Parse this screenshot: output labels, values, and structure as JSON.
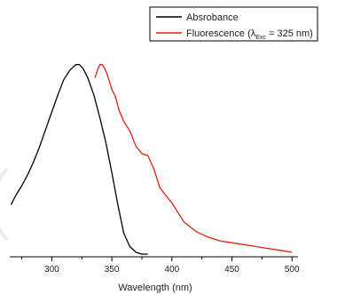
{
  "chart_data": {
    "type": "line",
    "title": "",
    "xlabel": "Wavelength (nm)",
    "ylabel": "",
    "xlim": [
      265,
      505
    ],
    "ylim": [
      0,
      1.05
    ],
    "x_ticks": [
      300,
      350,
      400,
      450,
      500
    ],
    "x_tick_labels": [
      "300",
      "350",
      "400",
      "450",
      "500"
    ],
    "grid": false,
    "legend_position": "top-right",
    "series": [
      {
        "name": "Absrobance",
        "color": "#000000",
        "x": [
          266,
          270,
          275,
          280,
          285,
          290,
          295,
          300,
          305,
          310,
          315,
          320,
          323,
          326,
          330,
          335,
          340,
          345,
          350,
          355,
          360,
          365,
          370,
          375,
          380
        ],
        "y": [
          0.26,
          0.31,
          0.36,
          0.42,
          0.49,
          0.57,
          0.66,
          0.75,
          0.84,
          0.92,
          0.97,
          1.0,
          1.0,
          0.98,
          0.93,
          0.84,
          0.72,
          0.59,
          0.43,
          0.26,
          0.11,
          0.04,
          0.01,
          0.0,
          0.0
        ]
      },
      {
        "name_prefix": "Fluorescence (λ",
        "name_sub": "Exc",
        "name_suffix": " = 325 nm)",
        "color": "#e02010",
        "x": [
          336,
          338,
          340,
          342,
          344,
          346,
          348,
          350,
          353,
          356,
          360,
          365,
          370,
          375,
          380,
          385,
          390,
          395,
          400,
          410,
          420,
          430,
          440,
          450,
          460,
          470,
          480,
          490,
          500
        ],
        "y": [
          0.93,
          0.97,
          1.0,
          1.0,
          0.98,
          0.95,
          0.91,
          0.87,
          0.83,
          0.76,
          0.7,
          0.65,
          0.57,
          0.53,
          0.52,
          0.45,
          0.35,
          0.31,
          0.27,
          0.17,
          0.12,
          0.09,
          0.07,
          0.06,
          0.05,
          0.04,
          0.03,
          0.02,
          0.01
        ]
      }
    ]
  }
}
